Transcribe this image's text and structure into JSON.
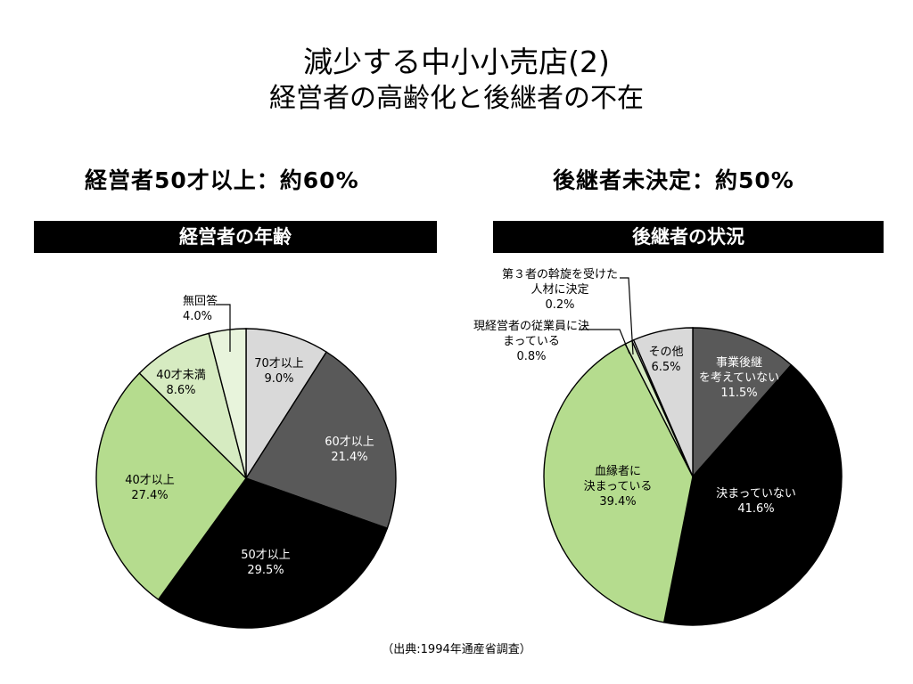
{
  "title": "減少する中小小売店(2)",
  "subtitle": "経営者の高齢化と後継者の不在",
  "left_headline": "経営者50才以上：約60%",
  "right_headline": "後継者未決定：約50%",
  "source": "（出典:1994年通産省調査）",
  "chart_data": [
    {
      "type": "pie",
      "title": "経営者の年齢",
      "slices": [
        {
          "label": "70才以上",
          "value": 9.0,
          "color": "#d9d9d9",
          "text_color": "#000000"
        },
        {
          "label": "60才以上",
          "value": 21.4,
          "color": "#595959",
          "text_color": "#ffffff"
        },
        {
          "label": "50才以上",
          "value": 29.5,
          "color": "#000000",
          "text_color": "#ffffff"
        },
        {
          "label": "40才以上",
          "value": 27.4,
          "color": "#b5dc8e",
          "text_color": "#000000"
        },
        {
          "label": "40才未満",
          "value": 8.6,
          "color": "#d6ebc1",
          "text_color": "#000000"
        },
        {
          "label": "無回答",
          "value": 4.0,
          "color": "#e8f4dc",
          "text_color": "#000000"
        }
      ]
    },
    {
      "type": "pie",
      "title": "後継者の状況",
      "slices": [
        {
          "label": "事業後継を考えていない",
          "value": 11.5,
          "color": "#595959",
          "text_color": "#ffffff"
        },
        {
          "label": "決まっていない",
          "value": 41.6,
          "color": "#000000",
          "text_color": "#ffffff"
        },
        {
          "label": "血縁者に決まっている",
          "value": 39.4,
          "color": "#b5dc8e",
          "text_color": "#000000"
        },
        {
          "label": "現経営者の従業員に決まっている",
          "value": 0.8,
          "color": "#d6ebc1",
          "text_color": "#000000"
        },
        {
          "label": "第３者の斡旋を受けた人材に決定",
          "value": 0.2,
          "color": "#ffffff",
          "text_color": "#000000"
        },
        {
          "label": "その他",
          "value": 6.5,
          "color": "#d9d9d9",
          "text_color": "#000000"
        }
      ]
    }
  ]
}
